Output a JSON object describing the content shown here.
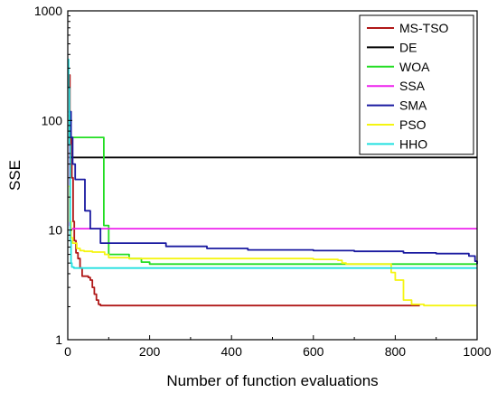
{
  "chart_data": {
    "type": "line",
    "title": "",
    "xlabel": "Number of function evaluations",
    "ylabel": "SSE",
    "xlim": [
      0,
      1000
    ],
    "ylim": [
      1,
      1000
    ],
    "yscale": "log",
    "grid": false,
    "legend_position": "top-right",
    "x_ticks": [
      0,
      200,
      400,
      600,
      800,
      1000
    ],
    "x_tick_labels": [
      "0",
      "200",
      "400",
      "600",
      "800",
      "1000"
    ],
    "y_ticks": [
      1,
      10,
      100,
      1000
    ],
    "y_tick_labels": [
      "1",
      "10",
      "100",
      "1000"
    ],
    "series": [
      {
        "name": "MS-TSO",
        "color": "#b01818",
        "points": [
          [
            2,
            260
          ],
          [
            5,
            120
          ],
          [
            8,
            60
          ],
          [
            10,
            30
          ],
          [
            13,
            12
          ],
          [
            16,
            8
          ],
          [
            20,
            6.2
          ],
          [
            25,
            5.5
          ],
          [
            30,
            4.5
          ],
          [
            35,
            3.8
          ],
          [
            50,
            3.7
          ],
          [
            55,
            3.5
          ],
          [
            60,
            3.0
          ],
          [
            65,
            2.6
          ],
          [
            70,
            2.3
          ],
          [
            75,
            2.1
          ],
          [
            80,
            2.05
          ],
          [
            860,
            2.05
          ]
        ]
      },
      {
        "name": "DE",
        "color": "#000000",
        "points": [
          [
            2,
            46
          ],
          [
            1000,
            46
          ]
        ]
      },
      {
        "name": "WOA",
        "color": "#22dd22",
        "points": [
          [
            2,
            110
          ],
          [
            5,
            70
          ],
          [
            85,
            70
          ],
          [
            88,
            11
          ],
          [
            98,
            11
          ],
          [
            100,
            6.0
          ],
          [
            150,
            5.5
          ],
          [
            180,
            5.1
          ],
          [
            200,
            4.9
          ],
          [
            1000,
            4.9
          ]
        ]
      },
      {
        "name": "SSA",
        "color": "#ee22ee",
        "points": [
          [
            2,
            60
          ],
          [
            5,
            11
          ],
          [
            8,
            10.3
          ],
          [
            1000,
            10.3
          ]
        ]
      },
      {
        "name": "SMA",
        "color": "#1a1aa0",
        "points": [
          [
            2,
            120
          ],
          [
            8,
            70
          ],
          [
            12,
            40
          ],
          [
            18,
            29
          ],
          [
            38,
            29
          ],
          [
            42,
            15
          ],
          [
            55,
            10.3
          ],
          [
            75,
            10.3
          ],
          [
            80,
            7.6
          ],
          [
            230,
            7.6
          ],
          [
            240,
            7.1
          ],
          [
            330,
            7.1
          ],
          [
            340,
            6.8
          ],
          [
            440,
            6.6
          ],
          [
            500,
            6.6
          ],
          [
            600,
            6.5
          ],
          [
            700,
            6.4
          ],
          [
            820,
            6.2
          ],
          [
            900,
            6.1
          ],
          [
            980,
            5.8
          ],
          [
            995,
            5.2
          ],
          [
            1000,
            4.9
          ]
        ]
      },
      {
        "name": "PSO",
        "color": "#f5f510",
        "points": [
          [
            2,
            25
          ],
          [
            5,
            12
          ],
          [
            8,
            8.5
          ],
          [
            12,
            7.6
          ],
          [
            18,
            7.6
          ],
          [
            22,
            6.8
          ],
          [
            30,
            6.5
          ],
          [
            40,
            6.4
          ],
          [
            60,
            6.3
          ],
          [
            90,
            6.0
          ],
          [
            100,
            5.6
          ],
          [
            150,
            5.5
          ],
          [
            300,
            5.5
          ],
          [
            500,
            5.5
          ],
          [
            600,
            5.4
          ],
          [
            660,
            5.3
          ],
          [
            670,
            5.0
          ],
          [
            680,
            4.9
          ],
          [
            780,
            4.9
          ],
          [
            790,
            4.1
          ],
          [
            800,
            3.5
          ],
          [
            820,
            2.3
          ],
          [
            840,
            2.1
          ],
          [
            870,
            2.05
          ],
          [
            1000,
            2.05
          ]
        ]
      },
      {
        "name": "HHO",
        "color": "#22e0e0",
        "points": [
          [
            0,
            360
          ],
          [
            2,
            200
          ],
          [
            4,
            60
          ],
          [
            6,
            8
          ],
          [
            8,
            5
          ],
          [
            10,
            4.6
          ],
          [
            15,
            4.5
          ],
          [
            1000,
            4.5
          ]
        ]
      }
    ]
  }
}
